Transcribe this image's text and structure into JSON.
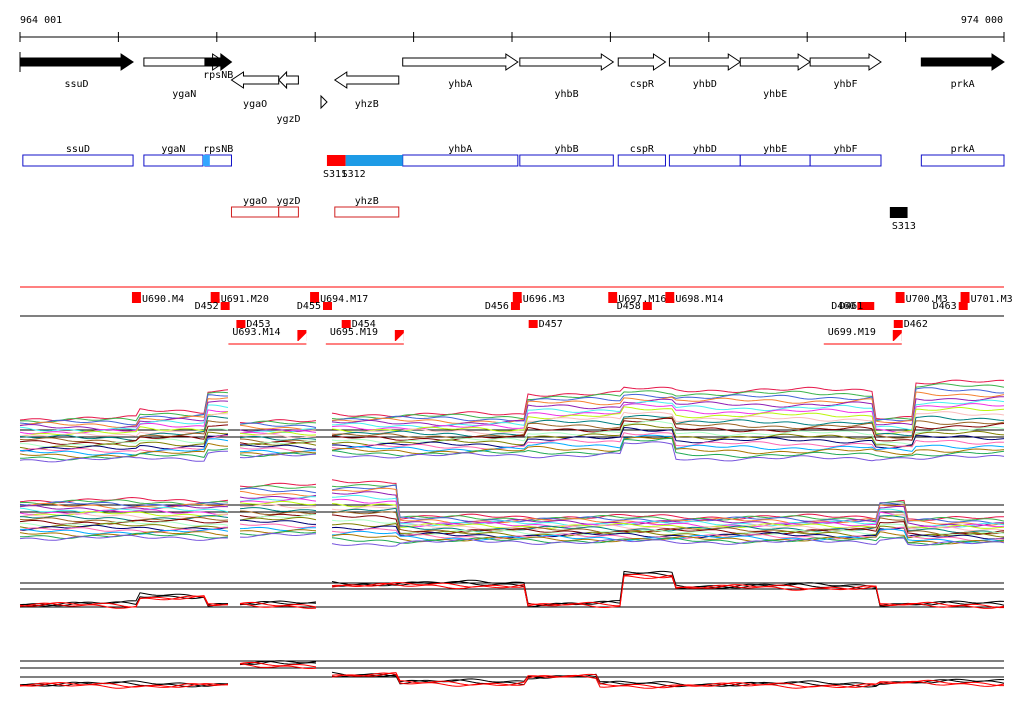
{
  "coords": {
    "start": "964 001",
    "end": "974 000"
  },
  "genes_top": [
    {
      "name": "ssuD",
      "x1": 964001,
      "x2": 965150,
      "strand": "+",
      "filled": true
    },
    {
      "name": "ygaN",
      "x1": 965260,
      "x2": 966080,
      "strand": "+",
      "filled": false,
      "label_low": true
    },
    {
      "name": "rpsNB",
      "x1": 965880,
      "x2": 966150,
      "strand": "+",
      "filled": true,
      "label_low": true
    },
    {
      "name": "ygaO",
      "x1": 966150,
      "x2": 966630,
      "strand": "-",
      "filled": false,
      "label_low": true
    },
    {
      "name": "ygzD",
      "x1": 966630,
      "x2": 966830,
      "strand": "-",
      "filled": false,
      "label_low": true
    },
    {
      "name": "yhzB",
      "x1": 967200,
      "x2": 967850,
      "strand": "-",
      "filled": false,
      "label_low": true
    },
    {
      "name": "yhbA",
      "x1": 967890,
      "x2": 969060,
      "strand": "+",
      "filled": false
    },
    {
      "name": "yhbB",
      "x1": 969080,
      "x2": 970030,
      "strand": "+",
      "filled": false,
      "label_low": true
    },
    {
      "name": "cspR",
      "x1": 970080,
      "x2": 970560,
      "strand": "+",
      "filled": false
    },
    {
      "name": "yhbD",
      "x1": 970600,
      "x2": 971320,
      "strand": "+",
      "filled": false
    },
    {
      "name": "yhbE",
      "x1": 971320,
      "x2": 972030,
      "strand": "+",
      "filled": false,
      "label_low": true
    },
    {
      "name": "yhbF",
      "x1": 972030,
      "x2": 972750,
      "strand": "+",
      "filled": false
    },
    {
      "name": "prkA",
      "x1": 973160,
      "x2": 974000,
      "strand": "+",
      "filled": true
    }
  ],
  "operon_plus": [
    {
      "name": "ssuD",
      "x1": 964030,
      "x2": 965150
    },
    {
      "name": "ygaN",
      "x1": 965260,
      "x2": 965860
    },
    {
      "name": "rpsNB",
      "x1": 965880,
      "x2": 966150
    },
    {
      "name": "yhbA",
      "x1": 967890,
      "x2": 969060
    },
    {
      "name": "yhbB",
      "x1": 969080,
      "x2": 970030
    },
    {
      "name": "cspR",
      "x1": 970080,
      "x2": 970560
    },
    {
      "name": "yhbD",
      "x1": 970600,
      "x2": 971320
    },
    {
      "name": "yhbE",
      "x1": 971320,
      "x2": 972030
    },
    {
      "name": "yhbF",
      "x1": 972030,
      "x2": 972750
    },
    {
      "name": "prkA",
      "x1": 973160,
      "x2": 974000
    }
  ],
  "operon_minus": [
    {
      "name": "ygaO",
      "x1": 966150,
      "x2": 966630
    },
    {
      "name": "ygzD",
      "x1": 966630,
      "x2": 966830
    },
    {
      "name": "yhzB",
      "x1": 967200,
      "x2": 967850
    }
  ],
  "segments": [
    {
      "name": "S311",
      "x1": 967120,
      "x2": 967310,
      "color": "#ff0000"
    },
    {
      "name": "S312",
      "x1": 967310,
      "x2": 967890,
      "color": "#1e9be6"
    },
    {
      "name": "S313",
      "x1": 972840,
      "x2": 973020,
      "color": "#000000"
    }
  ],
  "upshift_plus": [
    {
      "name": "U690.M4",
      "x": 965220
    },
    {
      "name": "U691.M20",
      "x": 966020
    },
    {
      "name": "U694.M17",
      "x": 967030
    },
    {
      "name": "U696.M3",
      "x": 969090
    },
    {
      "name": "U697.M16",
      "x": 970060
    },
    {
      "name": "U698.M14",
      "x": 970640
    },
    {
      "name": "U700.M3",
      "x": 972980
    },
    {
      "name": "U701.M3",
      "x": 973640
    }
  ],
  "upshift_minus": [
    {
      "name": "U693.M14",
      "x": 966830
    },
    {
      "name": "U695.M19",
      "x": 967820
    },
    {
      "name": "U699.M19",
      "x": 972880
    }
  ],
  "downshift_plus": [
    {
      "name": "D452",
      "x": 966040
    },
    {
      "name": "D455",
      "x": 967080
    },
    {
      "name": "D456",
      "x": 968990
    },
    {
      "name": "D458",
      "x": 970330
    },
    {
      "name": "D460",
      "x": 972510
    },
    {
      "name": "D461",
      "x": 972590
    },
    {
      "name": "D463",
      "x": 973540
    }
  ],
  "downshift_minus": [
    {
      "name": "D453",
      "x": 966200
    },
    {
      "name": "D454",
      "x": 967270
    },
    {
      "name": "D457",
      "x": 969170
    },
    {
      "name": "D462",
      "x": 972880
    }
  ]
}
